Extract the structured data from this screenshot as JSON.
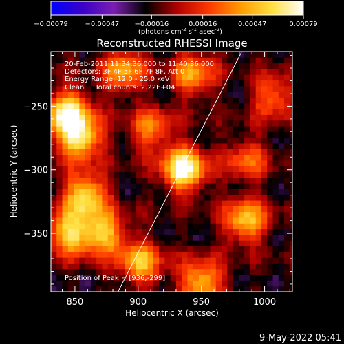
{
  "chart_data": {
    "type": "heatmap",
    "title": "Reconstructed RHESSI Image",
    "xlabel": "Heliocentric X (arcsec)",
    "ylabel": "Heliocentric Y (arcsec)",
    "xlim": [
      831,
      1022
    ],
    "ylim": [
      -396,
      -207
    ],
    "x_ticks": [
      850,
      900,
      950,
      1000
    ],
    "x_tick_labels": [
      "850",
      "900",
      "950",
      "1000"
    ],
    "y_ticks": [
      -250,
      -300,
      -350
    ],
    "y_tick_labels": [
      "-250",
      "-300",
      "-350"
    ],
    "colorbar": {
      "range": [
        -0.00079,
        0.00079
      ],
      "ticks": [
        -0.00079,
        -0.00047,
        -0.00016,
        0.00016,
        0.00047,
        0.00079
      ],
      "tick_labels": [
        "-0.00079",
        "-0.00047",
        "-0.00016",
        "0.00016",
        "0.00047",
        "0.00079"
      ],
      "unit_label": "(photons cm",
      "unit_sup1": "-2",
      "unit_mid": " s",
      "unit_sup2": "-1",
      "unit_end": " asec",
      "unit_sup3": "-2",
      "unit_close": ")",
      "colormap": [
        "#0000ff",
        "#3a00c8",
        "#7a1fb0",
        "#000000",
        "#b00000",
        "#ff3800",
        "#ff9a00",
        "#ffe040",
        "#ffffff"
      ]
    },
    "annotations": [
      "20-Feb-2011 11:34:36.000 to 11:40:36.000",
      "Detectors: 3F 4F 5F 6F 7F 8F, Att 0",
      "Energy Range: 12.0 - 25.0 keV",
      "Clean     Total counts: 2.22E+04"
    ],
    "peak_label": "Position of Peak = [936,-299]",
    "peak": [
      936,
      -299
    ],
    "limb_line": [
      [
        882,
        -400
      ],
      [
        983,
        -205
      ]
    ],
    "sources": [
      {
        "x": 936,
        "y": -299,
        "value": 0.00079
      },
      {
        "x": 844,
        "y": -255,
        "value": 0.0007
      },
      {
        "x": 854,
        "y": -275,
        "value": 0.00062
      },
      {
        "x": 858,
        "y": -320,
        "value": 0.0006
      },
      {
        "x": 846,
        "y": -350,
        "value": 0.00055
      },
      {
        "x": 873,
        "y": -350,
        "value": 0.0005
      },
      {
        "x": 902,
        "y": -373,
        "value": 0.00045
      },
      {
        "x": 889,
        "y": -222,
        "value": 0.0004
      },
      {
        "x": 944,
        "y": -225,
        "value": 0.0004
      },
      {
        "x": 985,
        "y": -340,
        "value": 0.0005
      },
      {
        "x": 950,
        "y": -388,
        "value": 0.0005
      },
      {
        "x": 910,
        "y": -268,
        "value": 0.0003
      },
      {
        "x": 1007,
        "y": -242,
        "value": 0.00028
      },
      {
        "x": 986,
        "y": -292,
        "value": 0.00025
      }
    ]
  },
  "footer": {
    "timestamp": "9-May-2022 05:41"
  }
}
